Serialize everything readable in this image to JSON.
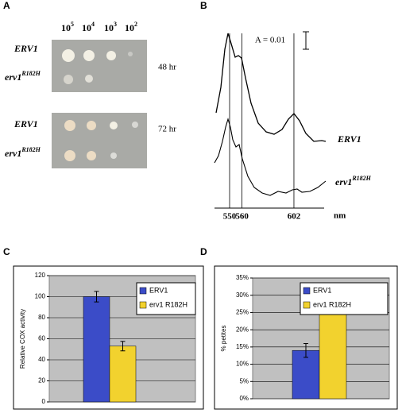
{
  "panel_labels": [
    "A",
    "B",
    "C",
    "D"
  ],
  "panel_a": {
    "dilutions": [
      {
        "base": "10",
        "sup": "5"
      },
      {
        "base": "10",
        "sup": "4"
      },
      {
        "base": "10",
        "sup": "3"
      },
      {
        "base": "10",
        "sup": "2"
      }
    ],
    "plates": [
      {
        "time": "48 hr",
        "strains": [
          {
            "text": "ERV1",
            "sup": ""
          },
          {
            "text": "erv1",
            "sup": "R182H"
          }
        ]
      },
      {
        "time": "72 hr",
        "strains": [
          {
            "text": "ERV1",
            "sup": ""
          },
          {
            "text": "erv1",
            "sup": "R182H"
          }
        ]
      }
    ]
  },
  "panel_b": {
    "scale_label": "A =  0.01",
    "traces": [
      {
        "text": "ERV1",
        "sup": ""
      },
      {
        "text": "erv1",
        "sup": "R182H"
      }
    ],
    "xticks": [
      550,
      560,
      602
    ],
    "xunit": "nm"
  },
  "chart_data": [
    {
      "type": "bar",
      "ylabel": "Relative COX activity",
      "ylim": [
        0,
        120
      ],
      "yticks": [
        0,
        20,
        40,
        60,
        80,
        100,
        120
      ],
      "grid": true,
      "series": [
        {
          "name": "ERV1",
          "color": "#3b4cc8",
          "values": [
            100
          ],
          "errors": [
            5
          ]
        },
        {
          "name": "erv1 R182H",
          "color": "#f2d22e",
          "values": [
            53
          ],
          "errors": [
            4.5
          ]
        }
      ]
    },
    {
      "type": "bar",
      "ylabel": "% petites",
      "ylim": [
        0,
        35
      ],
      "grid": true,
      "yticks": [
        {
          "value": 0,
          "label": "0%"
        },
        {
          "value": 5,
          "label": "5%"
        },
        {
          "value": 10,
          "label": "10%"
        },
        {
          "value": 15,
          "label": "15%"
        },
        {
          "value": 20,
          "label": "20%"
        },
        {
          "value": 25,
          "label": "25%"
        },
        {
          "value": 30,
          "label": "30%"
        },
        {
          "value": 35,
          "label": "35%"
        }
      ],
      "series": [
        {
          "name": "ERV1",
          "color": "#3b4cc8",
          "values": [
            14
          ],
          "errors": [
            2
          ]
        },
        {
          "name": "erv1 R182H",
          "color": "#f2d22e",
          "values": [
            29
          ],
          "errors": [
            2
          ]
        }
      ]
    }
  ]
}
